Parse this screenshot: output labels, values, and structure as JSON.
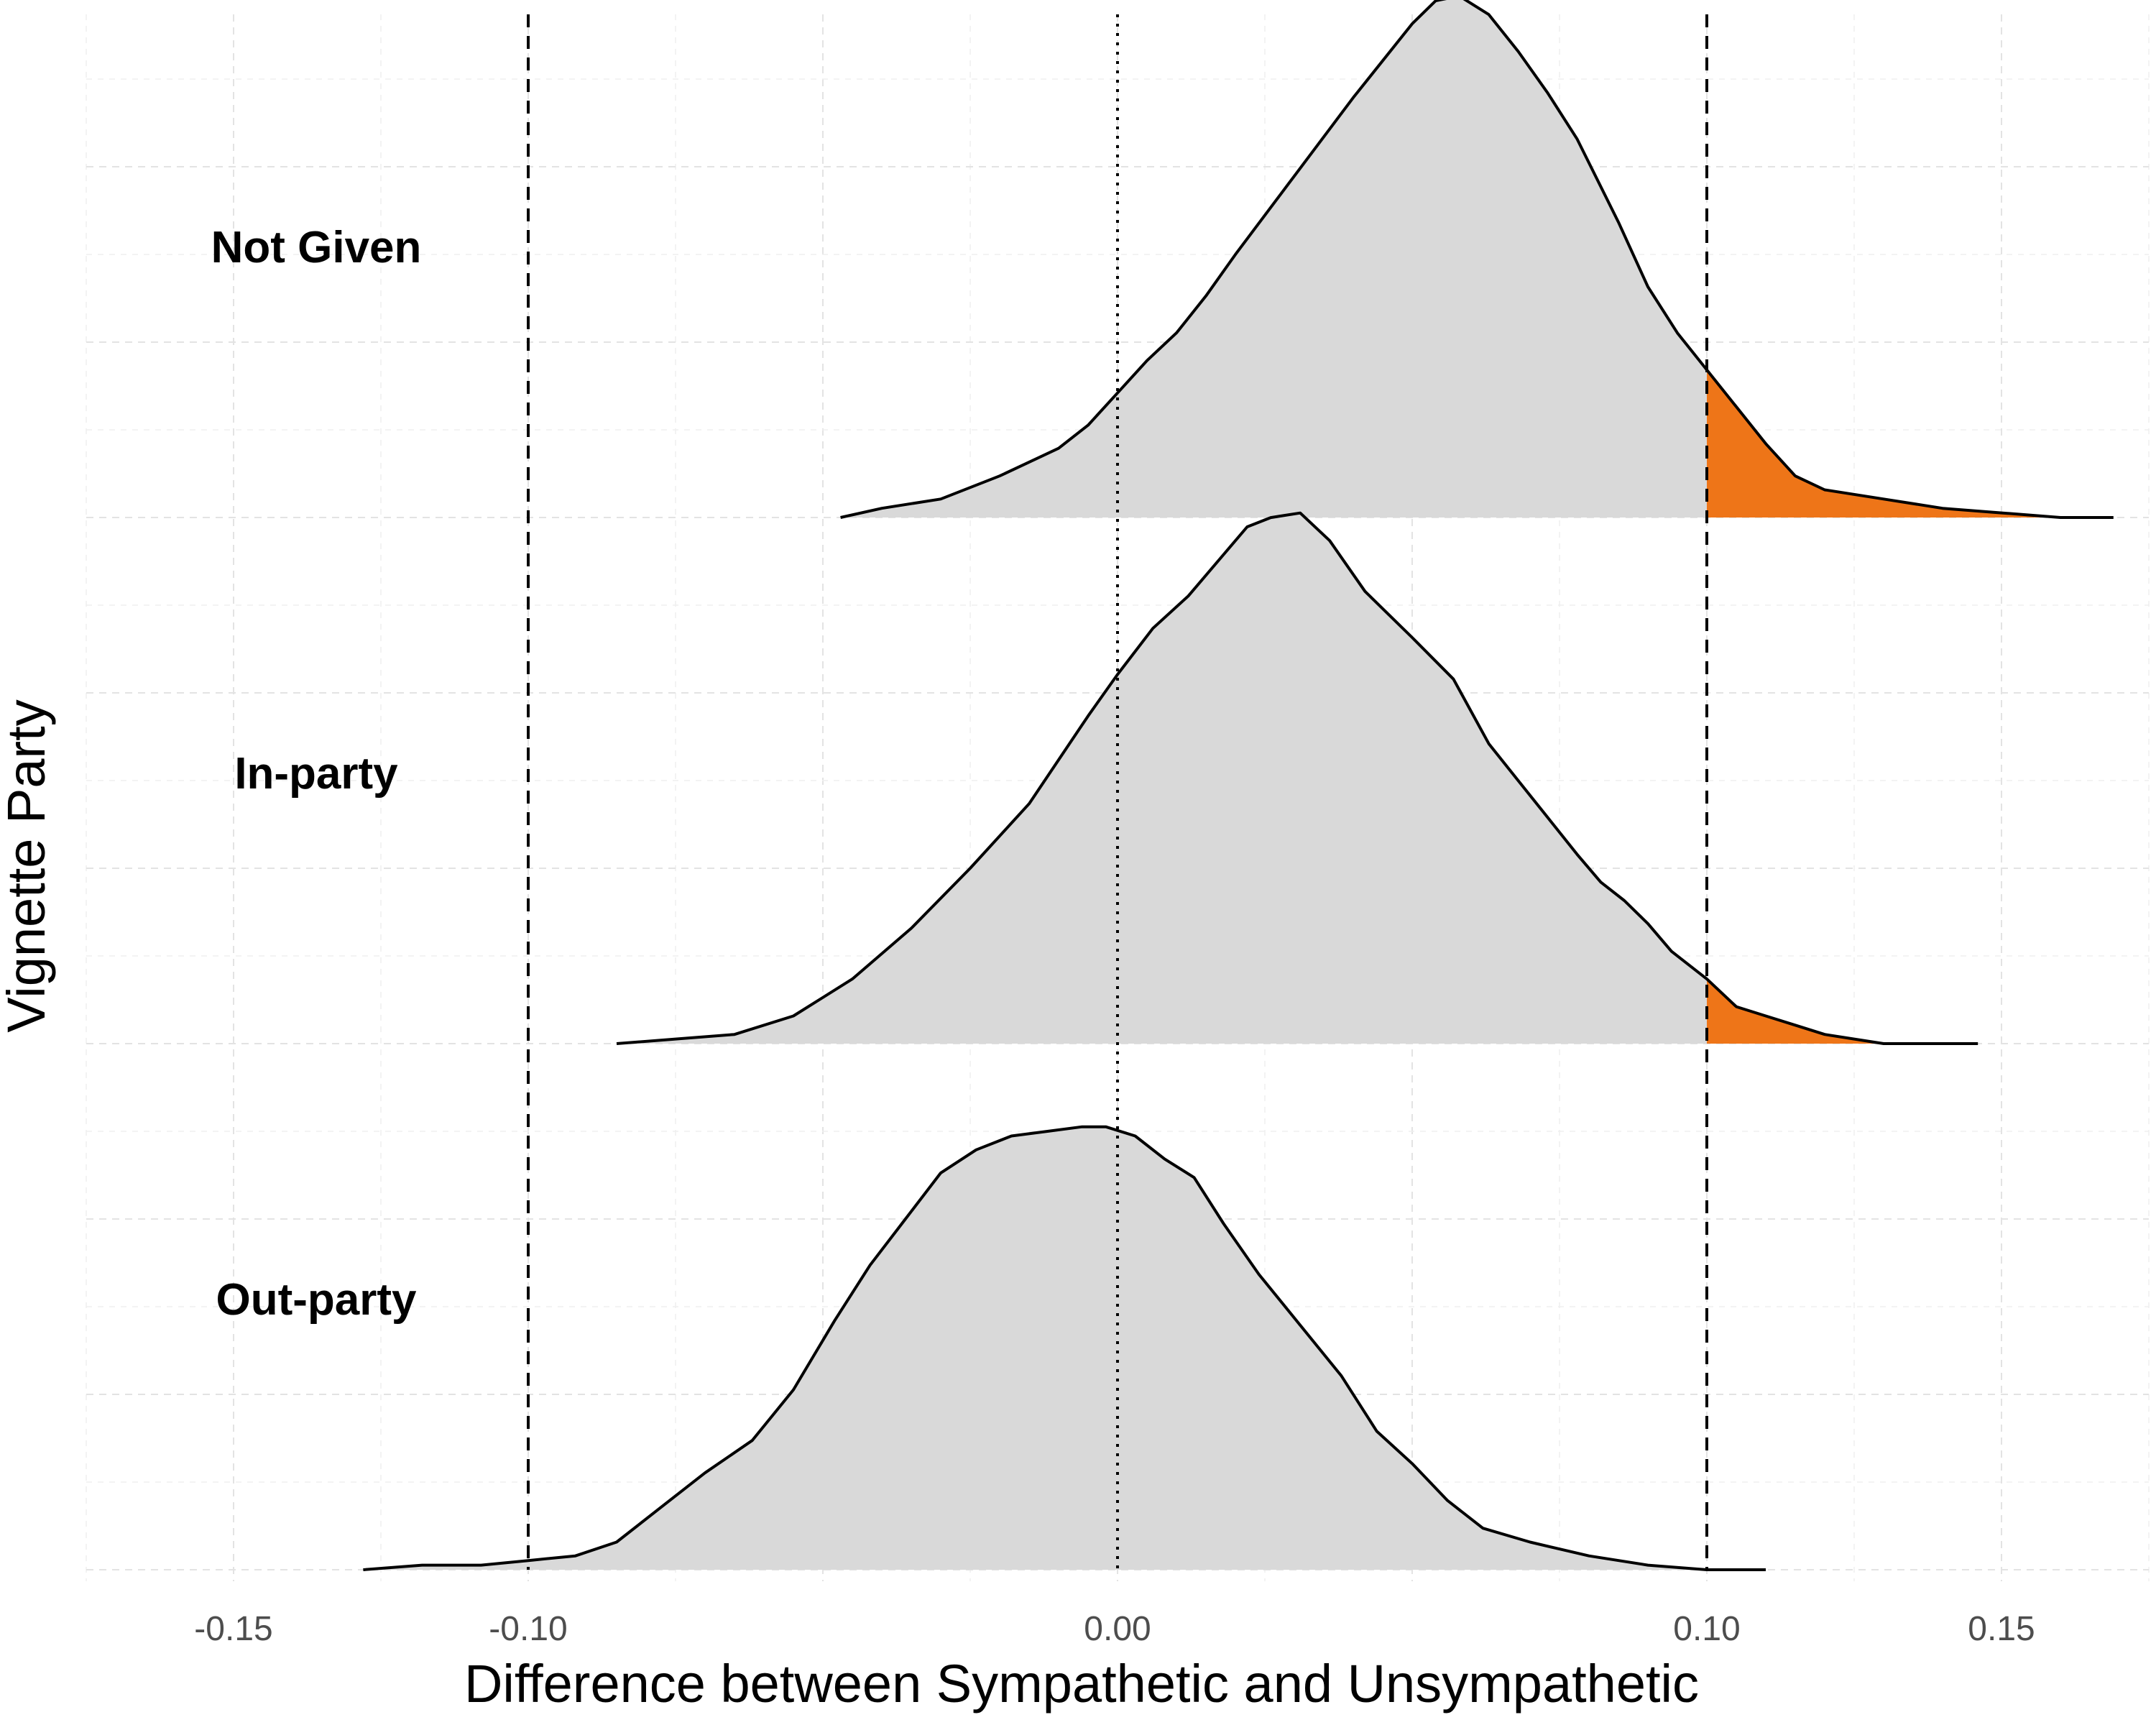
{
  "chart_data": {
    "type": "area",
    "subtype": "density ridgeline",
    "xlabel": "Difference between Sympathetic and Unsympathetic",
    "ylabel": "Vignette Party",
    "xlim": [
      -0.175,
      0.175
    ],
    "x_ticks": [
      -0.15,
      -0.1,
      0.0,
      0.1,
      0.15
    ],
    "x_tick_labels": [
      "-0.15",
      "-0.10",
      "0.00",
      "0.10",
      "0.15"
    ],
    "grid": true,
    "reference_lines": [
      {
        "x": -0.1,
        "style": "dashed"
      },
      {
        "x": 0.0,
        "style": "dotted"
      },
      {
        "x": 0.1,
        "style": "dashed"
      }
    ],
    "colors": {
      "fill": "#d9d9d9",
      "highlight": "#ee7518",
      "line": "#000000"
    },
    "highlight_threshold": 0.1,
    "series": [
      {
        "name": "Not Given",
        "points": [
          [
            -0.047,
            0.0
          ],
          [
            -0.04,
            0.02
          ],
          [
            -0.03,
            0.04
          ],
          [
            -0.02,
            0.09
          ],
          [
            -0.01,
            0.15
          ],
          [
            -0.005,
            0.2
          ],
          [
            0.0,
            0.27
          ],
          [
            0.005,
            0.34
          ],
          [
            0.01,
            0.4
          ],
          [
            0.015,
            0.48
          ],
          [
            0.02,
            0.57
          ],
          [
            0.03,
            0.74
          ],
          [
            0.04,
            0.91
          ],
          [
            0.05,
            1.07
          ],
          [
            0.054,
            1.12
          ],
          [
            0.058,
            1.13
          ],
          [
            0.063,
            1.09
          ],
          [
            0.068,
            1.01
          ],
          [
            0.073,
            0.92
          ],
          [
            0.078,
            0.82
          ],
          [
            0.085,
            0.64
          ],
          [
            0.09,
            0.5
          ],
          [
            0.095,
            0.4
          ],
          [
            0.1,
            0.32
          ],
          [
            0.105,
            0.24
          ],
          [
            0.11,
            0.16
          ],
          [
            0.115,
            0.09
          ],
          [
            0.12,
            0.06
          ],
          [
            0.13,
            0.04
          ],
          [
            0.14,
            0.02
          ],
          [
            0.15,
            0.01
          ],
          [
            0.16,
            0.0
          ],
          [
            0.169,
            0.0
          ]
        ]
      },
      {
        "name": "In-party",
        "points": [
          [
            -0.085,
            0.0
          ],
          [
            -0.075,
            0.01
          ],
          [
            -0.065,
            0.02
          ],
          [
            -0.055,
            0.06
          ],
          [
            -0.045,
            0.14
          ],
          [
            -0.035,
            0.25
          ],
          [
            -0.025,
            0.38
          ],
          [
            -0.015,
            0.52
          ],
          [
            -0.005,
            0.71
          ],
          [
            0.0,
            0.8
          ],
          [
            0.006,
            0.9
          ],
          [
            0.012,
            0.97
          ],
          [
            0.018,
            1.06
          ],
          [
            0.022,
            1.12
          ],
          [
            0.026,
            1.14
          ],
          [
            0.031,
            1.15
          ],
          [
            0.036,
            1.09
          ],
          [
            0.042,
            0.98
          ],
          [
            0.05,
            0.88
          ],
          [
            0.057,
            0.79
          ],
          [
            0.063,
            0.65
          ],
          [
            0.068,
            0.57
          ],
          [
            0.073,
            0.49
          ],
          [
            0.078,
            0.41
          ],
          [
            0.082,
            0.35
          ],
          [
            0.086,
            0.31
          ],
          [
            0.09,
            0.26
          ],
          [
            0.094,
            0.2
          ],
          [
            0.1,
            0.14
          ],
          [
            0.105,
            0.08
          ],
          [
            0.11,
            0.06
          ],
          [
            0.115,
            0.04
          ],
          [
            0.12,
            0.02
          ],
          [
            0.13,
            0.0
          ],
          [
            0.146,
            0.0
          ]
        ]
      },
      {
        "name": "Out-party",
        "points": [
          [
            -0.128,
            0.0
          ],
          [
            -0.118,
            0.01
          ],
          [
            -0.108,
            0.01
          ],
          [
            -0.1,
            0.02
          ],
          [
            -0.092,
            0.03
          ],
          [
            -0.085,
            0.06
          ],
          [
            -0.077,
            0.14
          ],
          [
            -0.07,
            0.21
          ],
          [
            -0.062,
            0.28
          ],
          [
            -0.055,
            0.39
          ],
          [
            -0.048,
            0.54
          ],
          [
            -0.042,
            0.66
          ],
          [
            -0.036,
            0.76
          ],
          [
            -0.03,
            0.86
          ],
          [
            -0.024,
            0.91
          ],
          [
            -0.018,
            0.94
          ],
          [
            -0.012,
            0.95
          ],
          [
            -0.006,
            0.96
          ],
          [
            -0.002,
            0.96
          ],
          [
            0.003,
            0.94
          ],
          [
            0.008,
            0.89
          ],
          [
            0.013,
            0.85
          ],
          [
            0.018,
            0.75
          ],
          [
            0.024,
            0.64
          ],
          [
            0.031,
            0.53
          ],
          [
            0.038,
            0.42
          ],
          [
            0.044,
            0.3
          ],
          [
            0.05,
            0.23
          ],
          [
            0.056,
            0.15
          ],
          [
            0.062,
            0.09
          ],
          [
            0.07,
            0.06
          ],
          [
            0.08,
            0.03
          ],
          [
            0.09,
            0.01
          ],
          [
            0.1,
            0.0
          ],
          [
            0.11,
            0.0
          ]
        ]
      }
    ]
  }
}
